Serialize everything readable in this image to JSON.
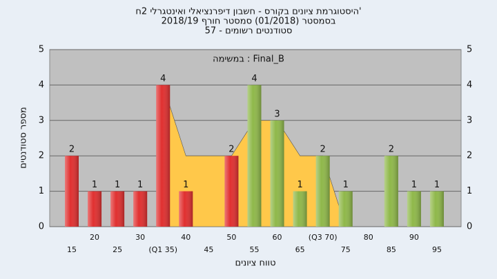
{
  "chart_data": {
    "type": "bar",
    "title": "'היסטוגרמת ציונים בקורס - חשבון דיפרנציאלי ואינטגרלי 2ח",
    "subtitle": [
      "בסמסטר (01/2018) סמסטר חורף 2018/19",
      "סטודנטים רשומים - 57"
    ],
    "annotation": "Final_B : במשימה",
    "x_label": "טווח ציונים",
    "y_label": "מספר סטודנטים",
    "categories": [
      "15",
      "20",
      "25",
      "30",
      "(Q1 35)",
      "40",
      "45",
      "50",
      "55",
      "60",
      "65",
      "(Q3 70)",
      "75",
      "80",
      "85",
      "90",
      "95"
    ],
    "values": [
      2,
      1,
      1,
      1,
      4,
      1,
      0,
      2,
      4,
      3,
      1,
      2,
      1,
      0,
      2,
      1,
      1
    ],
    "colors": [
      "#e03030",
      "#e03030",
      "#e03030",
      "#e03030",
      "#e03030",
      "#e03030",
      "#e03030",
      "#e03030",
      "#8fb84a",
      "#8fb84a",
      "#8fb84a",
      "#8fb84a",
      "#8fb84a",
      "#8fb84a",
      "#8fb84a",
      "#8fb84a",
      "#8fb84a"
    ],
    "area": {
      "color": "#ffc84a",
      "values": [
        null,
        null,
        null,
        null,
        4,
        2,
        2,
        2,
        3,
        3,
        2,
        2,
        0,
        null,
        null,
        null,
        null
      ]
    },
    "ylim": [
      0,
      5
    ],
    "yticks": [
      0,
      1,
      2,
      3,
      4,
      5
    ],
    "grid": true
  }
}
